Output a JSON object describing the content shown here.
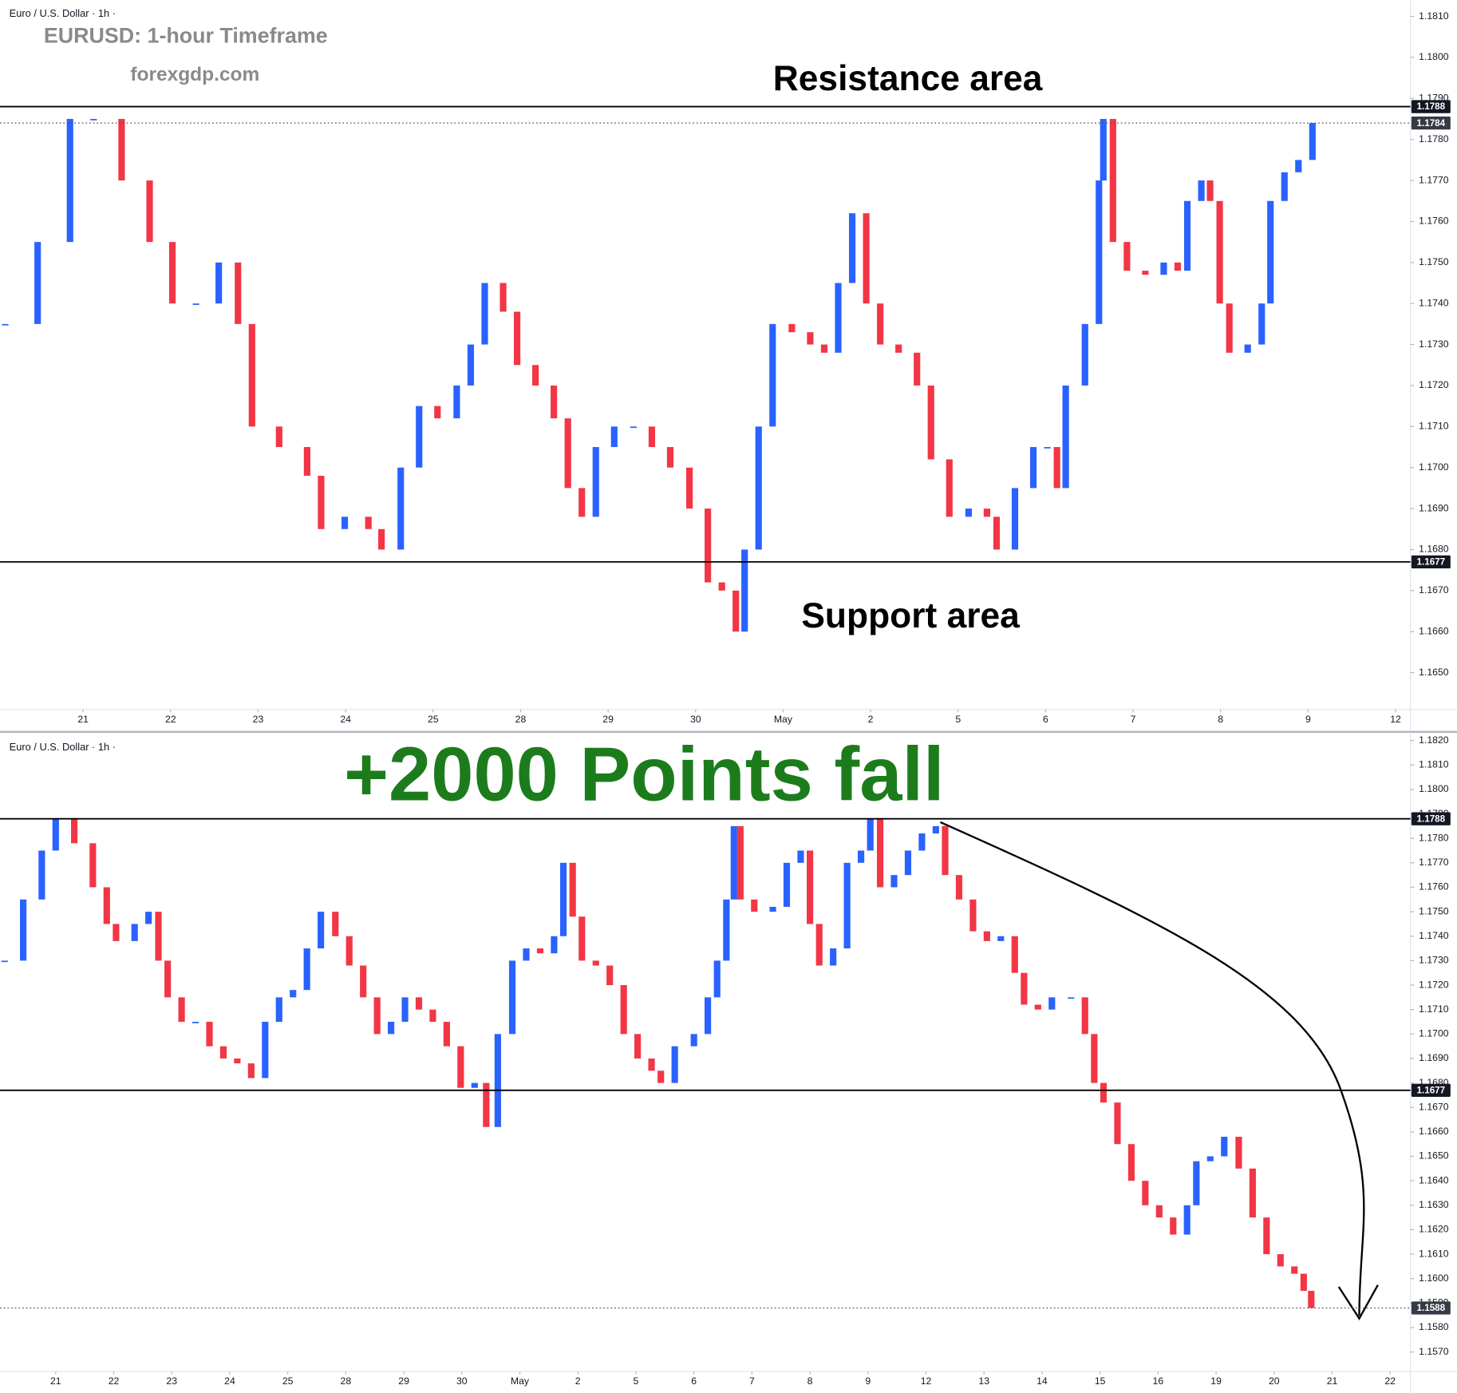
{
  "chart_data": [
    {
      "type": "candlestick",
      "header": "Euro / U.S. Dollar · 1h ·",
      "title": "EURUSD: 1-hour Timeframe",
      "subtitle": "forexgdp.com",
      "annotations": [
        "Resistance area",
        "Support area"
      ],
      "up_color": "#2962ff",
      "down_color": "#f23645",
      "x": [
        -0.89,
        -0.52,
        -0.15,
        0.12,
        0.44,
        0.76,
        1.02,
        1.29,
        1.55,
        1.77,
        1.93,
        2.24,
        2.56,
        2.72,
        2.99,
        3.26,
        3.41,
        3.63,
        3.84,
        4.05,
        4.27,
        4.43,
        4.59,
        4.8,
        4.96,
        5.17,
        5.38,
        5.54,
        5.7,
        5.86,
        6.07,
        6.29,
        6.5,
        6.71,
        6.93,
        7.14,
        7.3,
        7.46,
        7.56,
        7.72,
        7.88,
        8.1,
        8.31,
        8.47,
        8.63,
        8.79,
        8.95,
        9.11,
        9.32,
        9.53,
        9.69,
        9.9,
        10.12,
        10.33,
        10.44,
        10.65,
        10.86,
        11.02,
        11.13,
        11.23,
        11.45,
        11.61,
        11.66,
        11.77,
        11.93,
        12.14,
        12.35,
        12.51,
        12.62,
        12.78,
        12.88,
        12.99,
        13.1,
        13.31,
        13.47,
        13.57,
        13.73,
        13.89,
        14.05
      ],
      "values": [
        1.1735,
        1.1755,
        1.1785,
        1.1785,
        1.177,
        1.1755,
        1.174,
        1.174,
        1.175,
        1.1735,
        1.171,
        1.1705,
        1.1698,
        1.1685,
        1.1688,
        1.1685,
        1.168,
        1.17,
        1.1715,
        1.1712,
        1.172,
        1.173,
        1.1745,
        1.1738,
        1.1725,
        1.172,
        1.1712,
        1.1695,
        1.1688,
        1.1705,
        1.171,
        1.171,
        1.1705,
        1.17,
        1.169,
        1.1672,
        1.167,
        1.166,
        1.168,
        1.171,
        1.1735,
        1.1733,
        1.173,
        1.1728,
        1.1745,
        1.1762,
        1.174,
        1.173,
        1.1728,
        1.172,
        1.1702,
        1.1688,
        1.169,
        1.1688,
        1.168,
        1.1695,
        1.1705,
        1.1705,
        1.1695,
        1.172,
        1.1735,
        1.177,
        1.1785,
        1.1755,
        1.1748,
        1.1747,
        1.175,
        1.1748,
        1.1765,
        1.177,
        1.1765,
        1.174,
        1.1728,
        1.173,
        1.174,
        1.1765,
        1.1772,
        1.1775,
        1.1784
      ],
      "xlim": [
        -0.95,
        15.17
      ],
      "xticks": [
        {
          "value": 0,
          "label": "21"
        },
        {
          "value": 1,
          "label": "22"
        },
        {
          "value": 2,
          "label": "23"
        },
        {
          "value": 3,
          "label": "24"
        },
        {
          "value": 4,
          "label": "25"
        },
        {
          "value": 5,
          "label": "28"
        },
        {
          "value": 6,
          "label": "29"
        },
        {
          "value": 7,
          "label": "30"
        },
        {
          "value": 8,
          "label": "May"
        },
        {
          "value": 9,
          "label": "2"
        },
        {
          "value": 10,
          "label": "5"
        },
        {
          "value": 11,
          "label": "6"
        },
        {
          "value": 12,
          "label": "7"
        },
        {
          "value": 13,
          "label": "8"
        },
        {
          "value": 14,
          "label": "9"
        },
        {
          "value": 15,
          "label": "12"
        }
      ],
      "ylim": [
        1.1641,
        1.1814
      ],
      "yticks": [
        {
          "value": 1.165,
          "label": "1.1650"
        },
        {
          "value": 1.166,
          "label": "1.1660"
        },
        {
          "value": 1.167,
          "label": "1.1670"
        },
        {
          "value": 1.168,
          "label": "1.1680"
        },
        {
          "value": 1.169,
          "label": "1.1690"
        },
        {
          "value": 1.17,
          "label": "1.1700"
        },
        {
          "value": 1.171,
          "label": "1.1710"
        },
        {
          "value": 1.172,
          "label": "1.1720"
        },
        {
          "value": 1.173,
          "label": "1.1730"
        },
        {
          "value": 1.174,
          "label": "1.1740"
        },
        {
          "value": 1.175,
          "label": "1.1750"
        },
        {
          "value": 1.176,
          "label": "1.1760"
        },
        {
          "value": 1.177,
          "label": "1.1770"
        },
        {
          "value": 1.178,
          "label": "1.1780"
        },
        {
          "value": 1.179,
          "label": "1.1790"
        },
        {
          "value": 1.18,
          "label": "1.1800"
        },
        {
          "value": 1.181,
          "label": "1.1810"
        }
      ],
      "hlines": [
        1.1788,
        1.1677
      ],
      "last_price": 1.1784,
      "grid": false
    },
    {
      "type": "candlestick",
      "header": "Euro / U.S. Dollar · 1h ·",
      "annotations": [
        "+2000 Points fall"
      ],
      "up_color": "#2962ff",
      "down_color": "#f23645",
      "x": [
        -0.88,
        -0.56,
        -0.24,
        0.0,
        0.32,
        0.64,
        0.88,
        1.04,
        1.36,
        1.6,
        1.77,
        1.93,
        2.17,
        2.41,
        2.65,
        2.89,
        3.13,
        3.37,
        3.61,
        3.85,
        4.09,
        4.33,
        4.57,
        4.82,
        5.06,
        5.3,
        5.54,
        5.78,
        6.02,
        6.26,
        6.5,
        6.74,
        6.98,
        7.22,
        7.42,
        7.62,
        7.87,
        8.11,
        8.35,
        8.59,
        8.75,
        8.91,
        9.07,
        9.31,
        9.55,
        9.79,
        10.03,
        10.27,
        10.43,
        10.67,
        11.0,
        11.24,
        11.4,
        11.56,
        11.69,
        11.8,
        12.04,
        12.36,
        12.6,
        12.84,
        13.0,
        13.16,
        13.4,
        13.64,
        13.88,
        14.04,
        14.21,
        14.45,
        14.69,
        14.93,
        15.17,
        15.33,
        15.57,
        15.81,
        16.05,
        16.29,
        16.53,
        16.69,
        16.93,
        17.17,
        17.5,
        17.74,
        17.9,
        18.06,
        18.3,
        18.54,
        18.78,
        19.02,
        19.26,
        19.5,
        19.66,
        19.9,
        20.14,
        20.39,
        20.63,
        20.87,
        21.11,
        21.35,
        21.51,
        21.64
      ],
      "values": [
        1.173,
        1.1755,
        1.1775,
        1.1788,
        1.1778,
        1.176,
        1.1745,
        1.1738,
        1.1745,
        1.175,
        1.173,
        1.1715,
        1.1705,
        1.1705,
        1.1695,
        1.169,
        1.1688,
        1.1682,
        1.1705,
        1.1715,
        1.1718,
        1.1735,
        1.175,
        1.174,
        1.1728,
        1.1715,
        1.17,
        1.1705,
        1.1715,
        1.171,
        1.1705,
        1.1695,
        1.1678,
        1.168,
        1.1662,
        1.17,
        1.173,
        1.1735,
        1.1733,
        1.174,
        1.177,
        1.1748,
        1.173,
        1.1728,
        1.172,
        1.17,
        1.169,
        1.1685,
        1.168,
        1.1695,
        1.17,
        1.1715,
        1.173,
        1.1755,
        1.1785,
        1.1755,
        1.175,
        1.1752,
        1.177,
        1.1775,
        1.1745,
        1.1728,
        1.1735,
        1.177,
        1.1775,
        1.1788,
        1.176,
        1.1765,
        1.1775,
        1.1782,
        1.1785,
        1.1765,
        1.1755,
        1.1742,
        1.1738,
        1.174,
        1.1725,
        1.1712,
        1.171,
        1.1715,
        1.1715,
        1.17,
        1.168,
        1.1672,
        1.1655,
        1.164,
        1.163,
        1.1625,
        1.1618,
        1.163,
        1.1648,
        1.165,
        1.1658,
        1.1645,
        1.1625,
        1.161,
        1.1605,
        1.1602,
        1.1595,
        1.1588
      ],
      "xlim": [
        -0.96,
        23.35
      ],
      "xticks": [
        {
          "value": 0,
          "label": "21"
        },
        {
          "value": 1,
          "label": "22"
        },
        {
          "value": 2,
          "label": "23"
        },
        {
          "value": 3,
          "label": "24"
        },
        {
          "value": 4,
          "label": "25"
        },
        {
          "value": 5,
          "label": "28"
        },
        {
          "value": 6,
          "label": "29"
        },
        {
          "value": 7,
          "label": "30"
        },
        {
          "value": 8,
          "label": "May"
        },
        {
          "value": 9,
          "label": "2"
        },
        {
          "value": 10,
          "label": "5"
        },
        {
          "value": 11,
          "label": "6"
        },
        {
          "value": 12,
          "label": "7"
        },
        {
          "value": 13,
          "label": "8"
        },
        {
          "value": 14,
          "label": "9"
        },
        {
          "value": 15,
          "label": "12"
        },
        {
          "value": 16,
          "label": "13"
        },
        {
          "value": 17,
          "label": "14"
        },
        {
          "value": 18,
          "label": "15"
        },
        {
          "value": 19,
          "label": "16"
        },
        {
          "value": 20,
          "label": "19"
        },
        {
          "value": 21,
          "label": "20"
        },
        {
          "value": 22,
          "label": "21"
        },
        {
          "value": 23,
          "label": "22"
        }
      ],
      "ylim": [
        1.1562,
        1.1822
      ],
      "yticks": [
        {
          "value": 1.157,
          "label": "1.1570"
        },
        {
          "value": 1.158,
          "label": "1.1580"
        },
        {
          "value": 1.159,
          "label": "1.1590"
        },
        {
          "value": 1.16,
          "label": "1.1600"
        },
        {
          "value": 1.161,
          "label": "1.1610"
        },
        {
          "value": 1.162,
          "label": "1.1620"
        },
        {
          "value": 1.163,
          "label": "1.1630"
        },
        {
          "value": 1.164,
          "label": "1.1640"
        },
        {
          "value": 1.165,
          "label": "1.1650"
        },
        {
          "value": 1.166,
          "label": "1.1660"
        },
        {
          "value": 1.167,
          "label": "1.1670"
        },
        {
          "value": 1.168,
          "label": "1.1680"
        },
        {
          "value": 1.169,
          "label": "1.1690"
        },
        {
          "value": 1.17,
          "label": "1.1700"
        },
        {
          "value": 1.171,
          "label": "1.1710"
        },
        {
          "value": 1.172,
          "label": "1.1720"
        },
        {
          "value": 1.173,
          "label": "1.1730"
        },
        {
          "value": 1.174,
          "label": "1.1740"
        },
        {
          "value": 1.175,
          "label": "1.1750"
        },
        {
          "value": 1.176,
          "label": "1.1760"
        },
        {
          "value": 1.177,
          "label": "1.1770"
        },
        {
          "value": 1.178,
          "label": "1.1780"
        },
        {
          "value": 1.179,
          "label": "1.1790"
        },
        {
          "value": 1.18,
          "label": "1.1800"
        },
        {
          "value": 1.181,
          "label": "1.1810"
        },
        {
          "value": 1.182,
          "label": "1.1820"
        }
      ],
      "hlines": [
        1.1788,
        1.1677
      ],
      "last_price": 1.1588,
      "grid": false
    }
  ]
}
